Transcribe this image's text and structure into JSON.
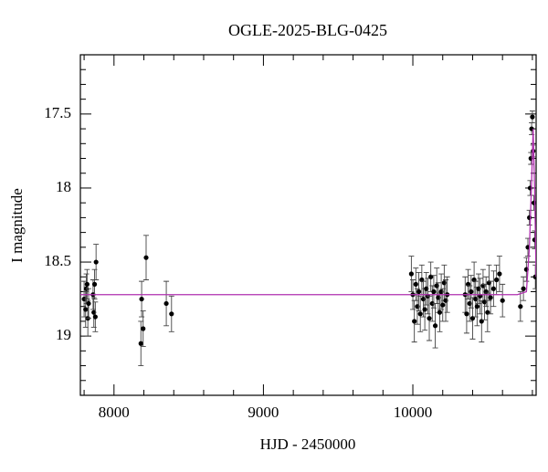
{
  "chart_data": {
    "type": "scatter",
    "title": "OGLE-2025-BLG-0425",
    "x_label": "HJD - 2450000",
    "y_label": "I magnitude",
    "xlim": [
      7775,
      10825
    ],
    "ylim": [
      19.4,
      17.1
    ],
    "xticks": [
      8000,
      9000,
      10000
    ],
    "yticks": [
      17.5,
      18,
      18.5,
      19
    ],
    "xminorticks": [
      7800,
      8200,
      8400,
      8600,
      8800,
      9200,
      9400,
      9600,
      9800,
      10200,
      10400,
      10600,
      10800
    ],
    "yminorticks": [
      17.2,
      17.3,
      17.4,
      17.6,
      17.7,
      17.8,
      17.9,
      18.1,
      18.2,
      18.3,
      18.4,
      18.6,
      18.7,
      18.8,
      18.9,
      19.1,
      19.2,
      19.3
    ],
    "series": [
      {
        "style": "points",
        "color": "#000000",
        "error_color": "#444444",
        "x": [
          7800,
          7810,
          7815,
          7820,
          7825,
          7830,
          7860,
          7865,
          7870,
          7875,
          7880,
          8180,
          8185,
          8195,
          8215,
          8350,
          8385,
          9990,
          10000,
          10010,
          10020,
          10030,
          10040,
          10050,
          10060,
          10070,
          10080,
          10090,
          10100,
          10110,
          10120,
          10130,
          10140,
          10150,
          10160,
          10170,
          10180,
          10190,
          10200,
          10210,
          10220,
          10230,
          10350,
          10360,
          10370,
          10380,
          10390,
          10400,
          10410,
          10420,
          10430,
          10440,
          10450,
          10460,
          10470,
          10480,
          10490,
          10500,
          10510,
          10520,
          10540,
          10560,
          10580,
          10600,
          10720,
          10740,
          10760,
          10770,
          10780,
          10785,
          10790,
          10795,
          10800,
          10805,
          10810,
          10815,
          10820
        ],
        "values": [
          18.75,
          18.82,
          18.68,
          18.65,
          18.88,
          18.78,
          18.72,
          18.84,
          18.65,
          18.87,
          18.5,
          19.05,
          18.75,
          18.95,
          18.47,
          18.78,
          18.85,
          18.58,
          18.72,
          18.9,
          18.65,
          18.8,
          18.7,
          18.85,
          18.62,
          18.75,
          18.82,
          18.68,
          18.73,
          18.88,
          18.6,
          18.78,
          18.7,
          18.93,
          18.66,
          18.74,
          18.84,
          18.7,
          18.79,
          18.64,
          18.76,
          18.72,
          18.72,
          18.85,
          18.65,
          18.78,
          18.7,
          18.88,
          18.62,
          18.75,
          18.8,
          18.68,
          18.73,
          18.9,
          18.66,
          18.77,
          18.7,
          18.84,
          18.64,
          18.74,
          18.68,
          18.62,
          18.58,
          18.76,
          18.8,
          18.68,
          18.55,
          18.4,
          18.2,
          18.0,
          17.8,
          17.6,
          17.52,
          17.75,
          18.1,
          18.35,
          18.6
        ],
        "errors": [
          0.12,
          0.12,
          0.1,
          0.1,
          0.12,
          0.1,
          0.1,
          0.1,
          0.1,
          0.1,
          0.12,
          0.15,
          0.12,
          0.12,
          0.15,
          0.15,
          0.12,
          0.12,
          0.1,
          0.14,
          0.11,
          0.12,
          0.13,
          0.12,
          0.1,
          0.12,
          0.14,
          0.11,
          0.12,
          0.15,
          0.1,
          0.12,
          0.11,
          0.15,
          0.12,
          0.1,
          0.13,
          0.12,
          0.11,
          0.12,
          0.14,
          0.12,
          0.12,
          0.13,
          0.1,
          0.12,
          0.11,
          0.14,
          0.12,
          0.12,
          0.13,
          0.1,
          0.12,
          0.14,
          0.11,
          0.12,
          0.1,
          0.13,
          0.12,
          0.11,
          0.12,
          0.1,
          0.12,
          0.11,
          0.1,
          0.08,
          0.08,
          0.06,
          0.05,
          0.05,
          0.04,
          0.04,
          0.04,
          0.04,
          0.05,
          0.06,
          0.08
        ]
      },
      {
        "style": "line",
        "color": "#b030b0",
        "x": [
          7775,
          10700,
          10760,
          10780,
          10795,
          10805,
          10815,
          10825
        ],
        "values": [
          18.72,
          18.72,
          18.7,
          18.4,
          17.95,
          17.6,
          18.0,
          18.6
        ]
      }
    ]
  }
}
